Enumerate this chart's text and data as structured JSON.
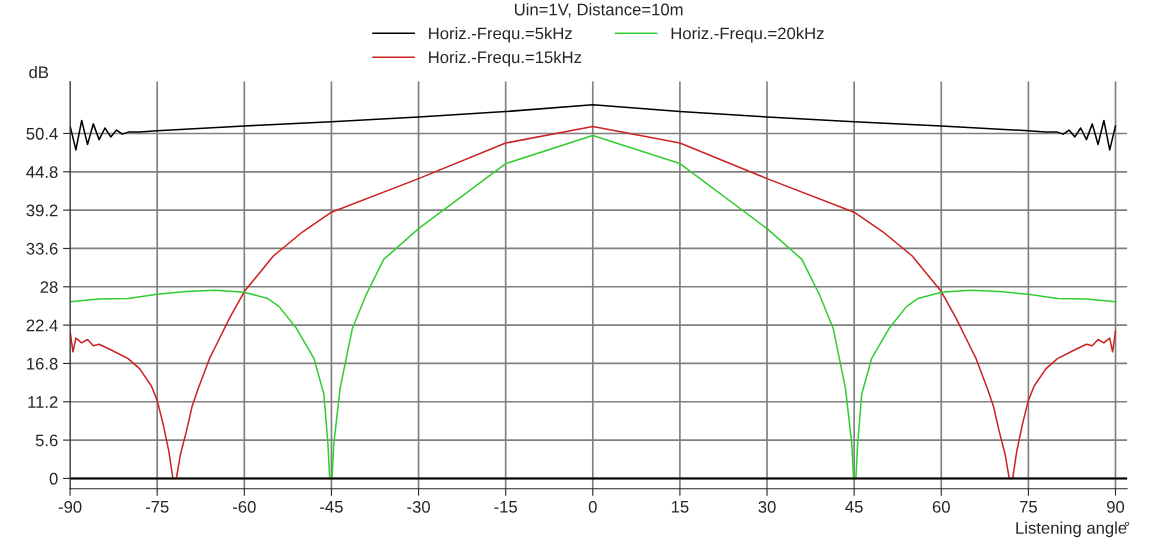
{
  "chart_data": {
    "type": "line",
    "ylabel": "dB",
    "xlabel": "Listening angle",
    "legend_title": "Uin=1V, Distance=10m",
    "annotations": [
      "°"
    ],
    "xlim": [
      -90,
      92
    ],
    "xticks": [
      -90,
      -75,
      -60,
      -45,
      -30,
      -15,
      0,
      15,
      30,
      45,
      60,
      75,
      90
    ],
    "ylim": [
      -1.5,
      58
    ],
    "yticks": [
      0,
      5.6,
      11.2,
      16.8,
      22.4,
      28,
      33.6,
      39.2,
      44.8,
      50.4
    ],
    "grid": true,
    "legend": "top",
    "marker": "none",
    "line_style": "solid",
    "series": [
      {
        "name": "Horiz.-Frequ.=5kHz",
        "color": "#000000",
        "x": [
          -90,
          -89,
          -88,
          -87,
          -86,
          -85,
          -84,
          -83,
          -82,
          -81,
          -80,
          -78,
          -75,
          -60,
          -45,
          -30,
          -15,
          0,
          15,
          30,
          45,
          60,
          75,
          78,
          80,
          81,
          82,
          83,
          84,
          85,
          86,
          87,
          88,
          89,
          90
        ],
        "values": [
          51.5,
          48.0,
          52.3,
          48.8,
          51.8,
          49.5,
          51.2,
          49.9,
          50.9,
          50.3,
          50.6,
          50.6,
          50.8,
          51.5,
          52.1,
          52.8,
          53.6,
          54.6,
          53.6,
          52.8,
          52.1,
          51.5,
          50.8,
          50.6,
          50.6,
          50.3,
          50.9,
          49.9,
          51.2,
          49.5,
          51.8,
          48.8,
          52.3,
          48.0,
          51.5
        ]
      },
      {
        "name": "Horiz.-Frequ.=15kHz",
        "color": "#cc2222",
        "x": [
          -90,
          -89.5,
          -89,
          -88,
          -87,
          -86,
          -85,
          -83,
          -80,
          -78,
          -76,
          -75,
          -74,
          -73,
          -72.3,
          -71.7,
          -71,
          -70,
          -69,
          -68,
          -66,
          -65,
          -62.5,
          -60,
          -55,
          -50,
          -45,
          -30,
          -15,
          0,
          15,
          30,
          45,
          50,
          55,
          60,
          62.5,
          65,
          66,
          68,
          69,
          70,
          71,
          71.7,
          72.3,
          73,
          74,
          75,
          76,
          78,
          80,
          83,
          85,
          86,
          87,
          88,
          89,
          89.5,
          90
        ],
        "values": [
          21.5,
          18.5,
          20.5,
          19.8,
          20.3,
          19.4,
          19.6,
          18.8,
          17.5,
          16,
          13.5,
          11.4,
          8,
          4,
          0,
          0,
          3.5,
          6.8,
          10.5,
          13,
          17.5,
          19.2,
          23.5,
          27.3,
          32.5,
          36,
          38.9,
          43.8,
          49,
          51.4,
          49,
          43.8,
          38.9,
          36,
          32.5,
          27.3,
          23.5,
          19.2,
          17.5,
          13,
          10.5,
          6.8,
          3.5,
          0,
          0,
          4,
          8,
          11.4,
          13.5,
          16,
          17.5,
          18.8,
          19.6,
          19.4,
          20.3,
          19.8,
          20.5,
          18.5,
          21.5
        ]
      },
      {
        "name": "Horiz.-Frequ.=20kHz",
        "color": "#33cc33",
        "x": [
          -90,
          -85,
          -80,
          -75,
          -70,
          -65,
          -60,
          -56,
          -54,
          -51,
          -48,
          -46.3,
          -45.6,
          -45.3,
          -44.9,
          -44.6,
          -43.5,
          -41.4,
          -39.1,
          -36,
          -30,
          -15,
          0,
          15,
          30,
          36,
          39.1,
          41.4,
          43.5,
          44.6,
          44.9,
          45.3,
          45.6,
          46.3,
          48,
          51,
          54,
          56,
          60,
          65,
          70,
          75,
          80,
          85,
          90
        ],
        "values": [
          25.8,
          26.2,
          26.3,
          26.9,
          27.3,
          27.5,
          27.2,
          26.3,
          25.1,
          21.9,
          17.5,
          12.3,
          5,
          0,
          0,
          5,
          13.2,
          21.9,
          26.7,
          32,
          36.5,
          46,
          50.1,
          46,
          36.5,
          32,
          26.7,
          21.9,
          13.2,
          5,
          0,
          0,
          5,
          12.3,
          17.5,
          21.9,
          25.1,
          26.3,
          27.2,
          27.5,
          27.3,
          26.9,
          26.3,
          26.2,
          25.8
        ]
      }
    ]
  }
}
